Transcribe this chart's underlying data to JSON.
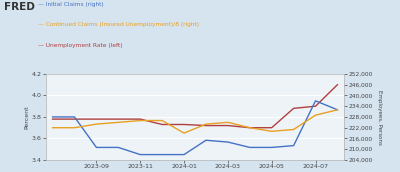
{
  "legend": [
    {
      "label": "Initial Claims (right)",
      "color": "#4472c4",
      "lw": 1.0
    },
    {
      "label": "Continued Claims (Insured Unemployment)/8 (right)",
      "color": "#e8a020",
      "lw": 1.0
    },
    {
      "label": "Unemployment Rate (left)",
      "color": "#b04040",
      "lw": 1.0
    }
  ],
  "x_labels": [
    "2023-09",
    "2023-11",
    "2024-01",
    "2024-03",
    "2024-05",
    "2024-07"
  ],
  "x_positions": [
    2,
    4,
    6,
    8,
    10,
    12
  ],
  "left_ylim": [
    3.4,
    4.2
  ],
  "left_yticks": [
    3.4,
    3.6,
    3.8,
    4.0,
    4.2
  ],
  "right_ylim": [
    204000,
    252000
  ],
  "right_yticks": [
    204000,
    210000,
    216000,
    222000,
    228000,
    234000,
    240000,
    246000,
    252000
  ],
  "bg_color": "#d6e4f0",
  "plot_bg_color": "#eef3f8",
  "grid_color": "#ffffff",
  "left_ylabel": "Percent",
  "right_ylabel": "Employees, Persons",
  "unemployment_x": [
    0,
    1,
    2,
    3,
    4,
    5,
    6,
    7,
    8,
    9,
    10,
    11,
    12,
    13
  ],
  "unemployment_y": [
    3.78,
    3.78,
    3.78,
    3.78,
    3.78,
    3.73,
    3.73,
    3.72,
    3.72,
    3.7,
    3.7,
    3.88,
    3.9,
    4.1
  ],
  "initial_x": [
    0,
    1,
    2,
    3,
    4,
    5,
    6,
    7,
    8,
    9,
    10,
    11,
    12,
    13
  ],
  "initial_y_right": [
    228000,
    228000,
    211000,
    211000,
    207000,
    207000,
    207000,
    215000,
    214000,
    211000,
    211000,
    212000,
    237000,
    232000
  ],
  "continued_x": [
    0,
    1,
    2,
    3,
    4,
    5,
    6,
    7,
    8,
    9,
    10,
    11,
    12,
    13
  ],
  "continued_y_right": [
    222000,
    222000,
    224000,
    225000,
    226000,
    226000,
    219000,
    224000,
    225000,
    222000,
    220000,
    221000,
    229000,
    232000
  ],
  "fred_color": "#cc0000"
}
